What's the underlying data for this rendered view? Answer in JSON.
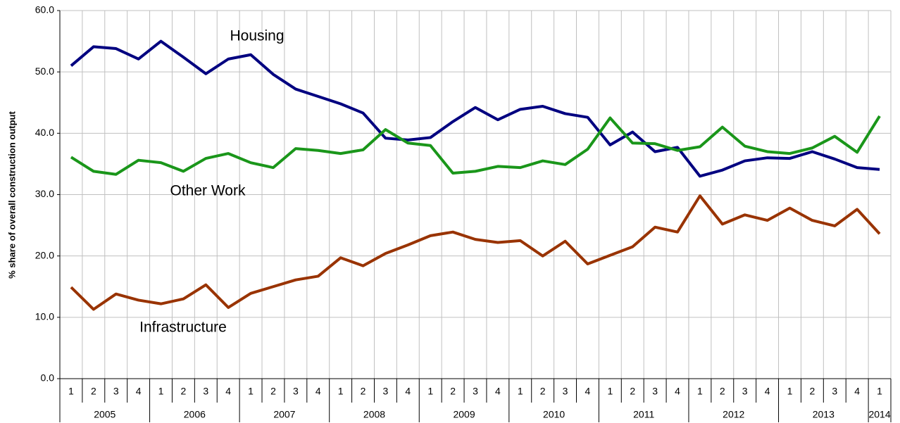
{
  "chart_data": {
    "type": "line",
    "y_label": "% share of overall construction output",
    "categories": [
      "1",
      "2",
      "3",
      "4",
      "1",
      "2",
      "3",
      "4",
      "1",
      "2",
      "3",
      "4",
      "1",
      "2",
      "3",
      "4",
      "1",
      "2",
      "3",
      "4",
      "1",
      "2",
      "3",
      "4",
      "1",
      "2",
      "3",
      "4",
      "1",
      "2",
      "3",
      "4",
      "1",
      "2",
      "3",
      "4",
      "1"
    ],
    "years": [
      "2005",
      "2006",
      "2007",
      "2008",
      "2009",
      "2010",
      "2011",
      "2012",
      "2013",
      "2014"
    ],
    "series": [
      {
        "name": "Housing",
        "color": "#000080",
        "values": [
          51.0,
          54.1,
          53.8,
          52.1,
          55.0,
          52.4,
          49.7,
          52.1,
          52.8,
          49.6,
          47.2,
          46.0,
          44.8,
          43.3,
          39.2,
          38.9,
          39.3,
          41.9,
          44.2,
          42.2,
          43.9,
          44.4,
          43.2,
          42.6,
          38.1,
          40.2,
          37.0,
          37.7,
          33.0,
          34.0,
          35.5,
          36.0,
          35.9,
          37.0,
          35.8,
          34.4,
          34.1
        ]
      },
      {
        "name": "Other Work",
        "color": "#1a961a",
        "values": [
          36.1,
          33.8,
          33.3,
          35.6,
          35.2,
          33.8,
          35.9,
          36.7,
          35.2,
          34.4,
          37.5,
          37.2,
          36.7,
          37.3,
          40.6,
          38.4,
          38.0,
          33.5,
          33.8,
          34.6,
          34.4,
          35.5,
          34.9,
          37.4,
          42.5,
          38.4,
          38.3,
          37.2,
          37.8,
          41.0,
          37.9,
          37.0,
          36.7,
          37.6,
          39.5,
          36.9,
          42.8
        ]
      },
      {
        "name": "Infrastructure",
        "color": "#993300",
        "values": [
          14.9,
          11.3,
          13.8,
          12.8,
          12.2,
          13.0,
          15.3,
          11.6,
          13.9,
          15.0,
          16.1,
          16.7,
          19.7,
          18.4,
          20.4,
          21.8,
          23.3,
          23.9,
          22.7,
          22.2,
          22.5,
          20.0,
          22.4,
          18.7,
          20.1,
          21.5,
          24.7,
          23.9,
          29.8,
          25.2,
          26.7,
          25.8,
          27.8,
          25.8,
          24.9,
          27.6,
          23.6
        ]
      }
    ],
    "ylim": [
      0,
      60
    ],
    "yticks": [
      {
        "value": 0,
        "label": "0.0"
      },
      {
        "value": 10,
        "label": "10.0"
      },
      {
        "value": 20,
        "label": "20.0"
      },
      {
        "value": 30,
        "label": "30.0"
      },
      {
        "value": 40,
        "label": "40.0"
      },
      {
        "value": 50,
        "label": "50.0"
      },
      {
        "value": 60,
        "label": "60.0"
      }
    ],
    "grid": true
  }
}
